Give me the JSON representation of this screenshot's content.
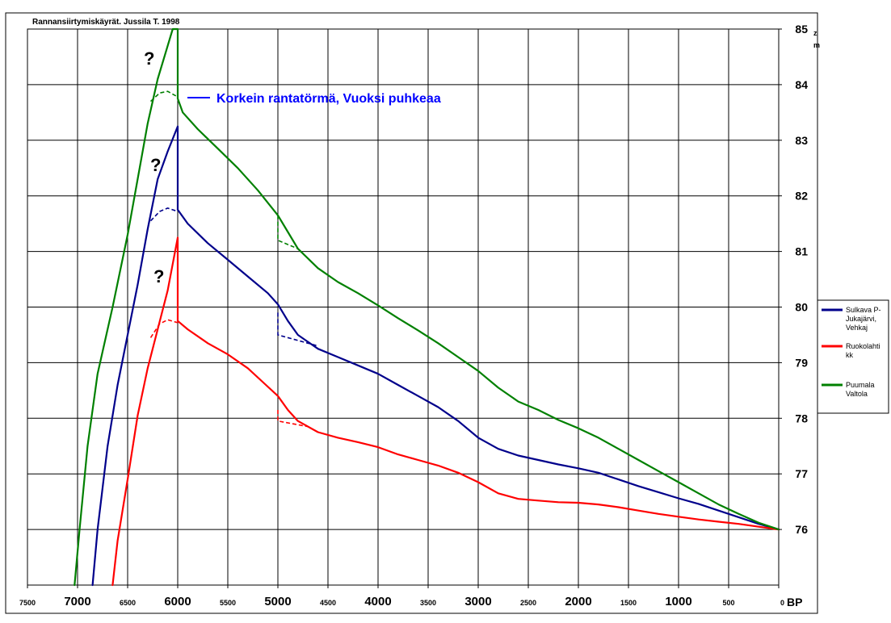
{
  "chart_data": {
    "type": "line",
    "title": "Rannansiirtymiskäyrät. Jussila T. 1998",
    "x_unit": "BP",
    "y_unit_lines": [
      "z",
      "m"
    ],
    "xlim": [
      7500,
      0
    ],
    "ylim": [
      75,
      85
    ],
    "x_reversed": true,
    "grid": true,
    "x_ticks": [
      {
        "value": 7500,
        "label": "7500",
        "major": false
      },
      {
        "value": 7000,
        "label": "7000",
        "major": true
      },
      {
        "value": 6500,
        "label": "6500",
        "major": false
      },
      {
        "value": 6000,
        "label": "6000",
        "major": true
      },
      {
        "value": 5500,
        "label": "5500",
        "major": false
      },
      {
        "value": 5000,
        "label": "5000",
        "major": true
      },
      {
        "value": 4500,
        "label": "4500",
        "major": false
      },
      {
        "value": 4000,
        "label": "4000",
        "major": true
      },
      {
        "value": 3500,
        "label": "3500",
        "major": false
      },
      {
        "value": 3000,
        "label": "3000",
        "major": true
      },
      {
        "value": 2500,
        "label": "2500",
        "major": false
      },
      {
        "value": 2000,
        "label": "2000",
        "major": true
      },
      {
        "value": 1500,
        "label": "1500",
        "major": false
      },
      {
        "value": 1000,
        "label": "1000",
        "major": true
      },
      {
        "value": 500,
        "label": "500",
        "major": false
      },
      {
        "value": 0,
        "label": "0",
        "major": false
      }
    ],
    "y_ticks": [
      {
        "value": 85,
        "label": "85"
      },
      {
        "value": 84,
        "label": "84"
      },
      {
        "value": 83,
        "label": "83"
      },
      {
        "value": 82,
        "label": "82"
      },
      {
        "value": 81,
        "label": "81"
      },
      {
        "value": 80,
        "label": "80"
      },
      {
        "value": 79,
        "label": "79"
      },
      {
        "value": 78,
        "label": "78"
      },
      {
        "value": 77,
        "label": "77"
      },
      {
        "value": 76,
        "label": "76"
      }
    ],
    "series": [
      {
        "name": "Sulkava P-Jukajärvi, Vehkaj",
        "legend_lines": [
          "Sulkava P-",
          "Jukajärvi,",
          "Vehkaj"
        ],
        "color": "#00008b",
        "points": [
          [
            6850,
            75
          ],
          [
            6800,
            76
          ],
          [
            6700,
            77.5
          ],
          [
            6600,
            78.6
          ],
          [
            6500,
            79.5
          ],
          [
            6400,
            80.4
          ],
          [
            6300,
            81.4
          ],
          [
            6200,
            82.3
          ],
          [
            6100,
            82.8
          ],
          [
            6000,
            83.25
          ],
          [
            6000,
            81.75
          ],
          [
            5900,
            81.5
          ],
          [
            5700,
            81.15
          ],
          [
            5500,
            80.85
          ],
          [
            5300,
            80.55
          ],
          [
            5100,
            80.25
          ],
          [
            5000,
            80.05
          ],
          [
            4900,
            79.75
          ],
          [
            4800,
            79.5
          ],
          [
            4600,
            79.25
          ],
          [
            4400,
            79.1
          ],
          [
            4200,
            78.95
          ],
          [
            4000,
            78.8
          ],
          [
            3800,
            78.6
          ],
          [
            3600,
            78.4
          ],
          [
            3400,
            78.2
          ],
          [
            3200,
            77.95
          ],
          [
            3000,
            77.65
          ],
          [
            2800,
            77.45
          ],
          [
            2600,
            77.33
          ],
          [
            2400,
            77.25
          ],
          [
            2200,
            77.17
          ],
          [
            2000,
            77.1
          ],
          [
            1800,
            77.02
          ],
          [
            1600,
            76.9
          ],
          [
            1400,
            76.78
          ],
          [
            1200,
            76.67
          ],
          [
            1000,
            76.56
          ],
          [
            800,
            76.46
          ],
          [
            600,
            76.34
          ],
          [
            400,
            76.22
          ],
          [
            200,
            76.1
          ],
          [
            0,
            76
          ]
        ]
      },
      {
        "name": "Ruokolahti kk",
        "legend_lines": [
          "Ruokolahti",
          "kk"
        ],
        "color": "#ff0000",
        "points": [
          [
            6650,
            75
          ],
          [
            6600,
            75.8
          ],
          [
            6500,
            76.9
          ],
          [
            6400,
            78.05
          ],
          [
            6300,
            78.9
          ],
          [
            6200,
            79.6
          ],
          [
            6100,
            80.3
          ],
          [
            6000,
            81.25
          ],
          [
            6000,
            79.75
          ],
          [
            5900,
            79.6
          ],
          [
            5700,
            79.35
          ],
          [
            5500,
            79.15
          ],
          [
            5300,
            78.9
          ],
          [
            5150,
            78.65
          ],
          [
            5000,
            78.4
          ],
          [
            4900,
            78.15
          ],
          [
            4800,
            77.95
          ],
          [
            4600,
            77.75
          ],
          [
            4400,
            77.65
          ],
          [
            4200,
            77.57
          ],
          [
            4000,
            77.48
          ],
          [
            3800,
            77.35
          ],
          [
            3600,
            77.25
          ],
          [
            3400,
            77.15
          ],
          [
            3200,
            77.02
          ],
          [
            3000,
            76.85
          ],
          [
            2800,
            76.65
          ],
          [
            2600,
            76.55
          ],
          [
            2400,
            76.52
          ],
          [
            2200,
            76.49
          ],
          [
            2000,
            76.48
          ],
          [
            1800,
            76.45
          ],
          [
            1600,
            76.4
          ],
          [
            1400,
            76.34
          ],
          [
            1200,
            76.28
          ],
          [
            1000,
            76.23
          ],
          [
            800,
            76.18
          ],
          [
            600,
            76.14
          ],
          [
            400,
            76.1
          ],
          [
            200,
            76.05
          ],
          [
            0,
            76
          ]
        ]
      },
      {
        "name": "Puumala Valtola",
        "legend_lines": [
          "Puumala",
          "Valtola"
        ],
        "color": "#008000",
        "points": [
          [
            7030,
            75
          ],
          [
            6980,
            76
          ],
          [
            6900,
            77.5
          ],
          [
            6800,
            78.8
          ],
          [
            6650,
            80
          ],
          [
            6500,
            81.3
          ],
          [
            6400,
            82.3
          ],
          [
            6300,
            83.3
          ],
          [
            6200,
            84.1
          ],
          [
            6100,
            84.7
          ],
          [
            6050,
            85.05
          ],
          [
            6000,
            85.05
          ],
          [
            6000,
            83.75
          ],
          [
            5950,
            83.5
          ],
          [
            5800,
            83.2
          ],
          [
            5600,
            82.85
          ],
          [
            5400,
            82.5
          ],
          [
            5200,
            82.1
          ],
          [
            5000,
            81.65
          ],
          [
            4900,
            81.35
          ],
          [
            4800,
            81.05
          ],
          [
            4600,
            80.7
          ],
          [
            4400,
            80.45
          ],
          [
            4200,
            80.25
          ],
          [
            4000,
            80.03
          ],
          [
            3800,
            79.8
          ],
          [
            3600,
            79.58
          ],
          [
            3400,
            79.35
          ],
          [
            3200,
            79.1
          ],
          [
            3000,
            78.85
          ],
          [
            2800,
            78.55
          ],
          [
            2600,
            78.3
          ],
          [
            2400,
            78.15
          ],
          [
            2200,
            77.97
          ],
          [
            2000,
            77.82
          ],
          [
            1800,
            77.65
          ],
          [
            1600,
            77.45
          ],
          [
            1400,
            77.25
          ],
          [
            1200,
            77.05
          ],
          [
            1000,
            76.85
          ],
          [
            800,
            76.65
          ],
          [
            600,
            76.45
          ],
          [
            400,
            76.28
          ],
          [
            200,
            76.12
          ],
          [
            0,
            76
          ]
        ]
      }
    ],
    "dashed_alternatives": [
      {
        "color": "#008000",
        "points": [
          [
            6270,
            83.7
          ],
          [
            6180,
            83.85
          ],
          [
            6100,
            83.88
          ],
          [
            6000,
            83.78
          ]
        ]
      },
      {
        "color": "#00008b",
        "points": [
          [
            6270,
            81.55
          ],
          [
            6180,
            81.72
          ],
          [
            6100,
            81.78
          ],
          [
            6000,
            81.72
          ]
        ]
      },
      {
        "color": "#ff0000",
        "points": [
          [
            6270,
            79.45
          ],
          [
            6180,
            79.7
          ],
          [
            6100,
            79.77
          ],
          [
            6000,
            79.72
          ]
        ]
      },
      {
        "color": "#008000",
        "points": [
          [
            5000,
            81.65
          ],
          [
            5000,
            81.2
          ],
          [
            4800,
            81.05
          ]
        ]
      },
      {
        "color": "#00008b",
        "points": [
          [
            5000,
            79.9
          ],
          [
            5000,
            79.5
          ],
          [
            4600,
            79.3
          ]
        ]
      },
      {
        "color": "#ff0000",
        "points": [
          [
            5000,
            78.15
          ],
          [
            5000,
            77.95
          ],
          [
            4700,
            77.85
          ]
        ]
      }
    ],
    "annotations": [
      {
        "text": "Korkein rantatörmä, Vuoksi puhkeaa",
        "color": "#0000ff"
      },
      {
        "text": "?"
      },
      {
        "text": "?"
      },
      {
        "text": "?"
      }
    ],
    "legend_position": "right"
  }
}
